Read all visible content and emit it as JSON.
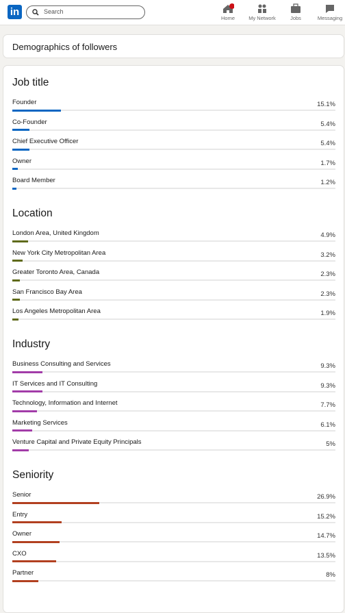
{
  "nav": {
    "search_placeholder": "Search",
    "items": [
      "Home",
      "My Network",
      "Jobs",
      "Messaging"
    ]
  },
  "header": {
    "title": "Demographics of followers"
  },
  "sections": [
    {
      "title": "Job title",
      "color": "#0a66c2",
      "items": [
        {
          "label": "Founder",
          "value": 15.1,
          "value_label": "15.1%"
        },
        {
          "label": "Co-Founder",
          "value": 5.4,
          "value_label": "5.4%"
        },
        {
          "label": "Chief Executive Officer",
          "value": 5.4,
          "value_label": "5.4%"
        },
        {
          "label": "Owner",
          "value": 1.7,
          "value_label": "1.7%"
        },
        {
          "label": "Board Member",
          "value": 1.2,
          "value_label": "1.2%"
        }
      ]
    },
    {
      "title": "Location",
      "color": "#5f6a1a",
      "items": [
        {
          "label": "London Area, United Kingdom",
          "value": 4.9,
          "value_label": "4.9%"
        },
        {
          "label": "New York City Metropolitan Area",
          "value": 3.2,
          "value_label": "3.2%"
        },
        {
          "label": "Greater Toronto Area, Canada",
          "value": 2.3,
          "value_label": "2.3%"
        },
        {
          "label": "San Francisco Bay Area",
          "value": 2.3,
          "value_label": "2.3%"
        },
        {
          "label": "Los Angeles Metropolitan Area",
          "value": 1.9,
          "value_label": "1.9%"
        }
      ]
    },
    {
      "title": "Industry",
      "color": "#a23ca8",
      "items": [
        {
          "label": "Business Consulting and Services",
          "value": 9.3,
          "value_label": "9.3%"
        },
        {
          "label": "IT Services and IT Consulting",
          "value": 9.3,
          "value_label": "9.3%"
        },
        {
          "label": "Technology, Information and Internet",
          "value": 7.7,
          "value_label": "7.7%"
        },
        {
          "label": "Marketing Services",
          "value": 6.1,
          "value_label": "6.1%"
        },
        {
          "label": "Venture Capital and Private Equity Principals",
          "value": 5,
          "value_label": "5%"
        }
      ]
    },
    {
      "title": "Seniority",
      "color": "#b24020",
      "items": [
        {
          "label": "Senior",
          "value": 26.9,
          "value_label": "26.9%"
        },
        {
          "label": "Entry",
          "value": 15.2,
          "value_label": "15.2%"
        },
        {
          "label": "Owner",
          "value": 14.7,
          "value_label": "14.7%"
        },
        {
          "label": "CXO",
          "value": 13.5,
          "value_label": "13.5%"
        },
        {
          "label": "Partner",
          "value": 8,
          "value_label": "8%"
        }
      ]
    }
  ]
}
